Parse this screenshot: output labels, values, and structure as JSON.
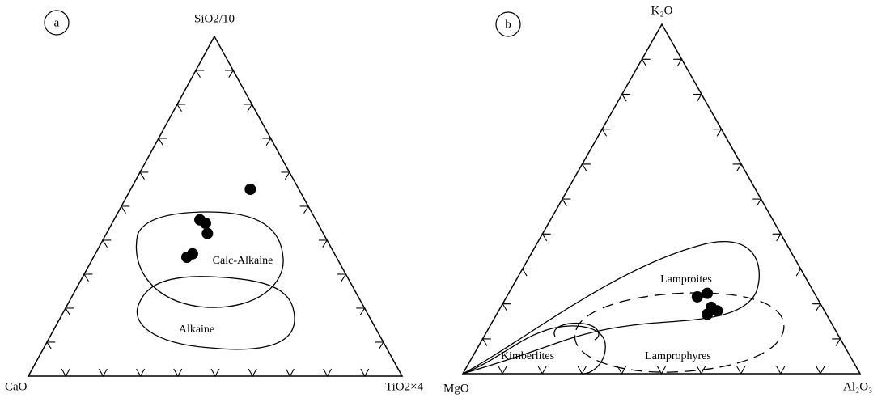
{
  "chart_data": [
    {
      "type": "ternary",
      "panel": "a",
      "apex_labels": {
        "top": "SiO2/10",
        "left": "CaO",
        "right": "TiO2×4"
      },
      "ticks": [
        10,
        20,
        30,
        40,
        50,
        60,
        70,
        80,
        90
      ],
      "regions": [
        "Calc-Alkaine",
        "Alkaine"
      ],
      "points": [
        [
          55,
          13,
          32
        ],
        [
          46,
          31,
          23
        ],
        [
          45,
          30,
          25
        ],
        [
          42,
          31,
          27
        ],
        [
          36,
          38,
          26
        ],
        [
          35,
          40,
          25
        ]
      ]
    },
    {
      "type": "ternary",
      "panel": "b",
      "apex_labels": {
        "top": "K₂O",
        "left": "MgO",
        "right": "Al₂O₃"
      },
      "ticks": [
        10,
        20,
        30,
        40,
        50,
        60,
        70,
        80,
        90
      ],
      "regions": [
        "Lamproites",
        "Lamprophyres",
        "Kimberlites"
      ],
      "points": [
        [
          22,
          30,
          48
        ],
        [
          23,
          27,
          50
        ],
        [
          19,
          28,
          53
        ],
        [
          17,
          30,
          53
        ],
        [
          18,
          27,
          55
        ]
      ]
    }
  ]
}
